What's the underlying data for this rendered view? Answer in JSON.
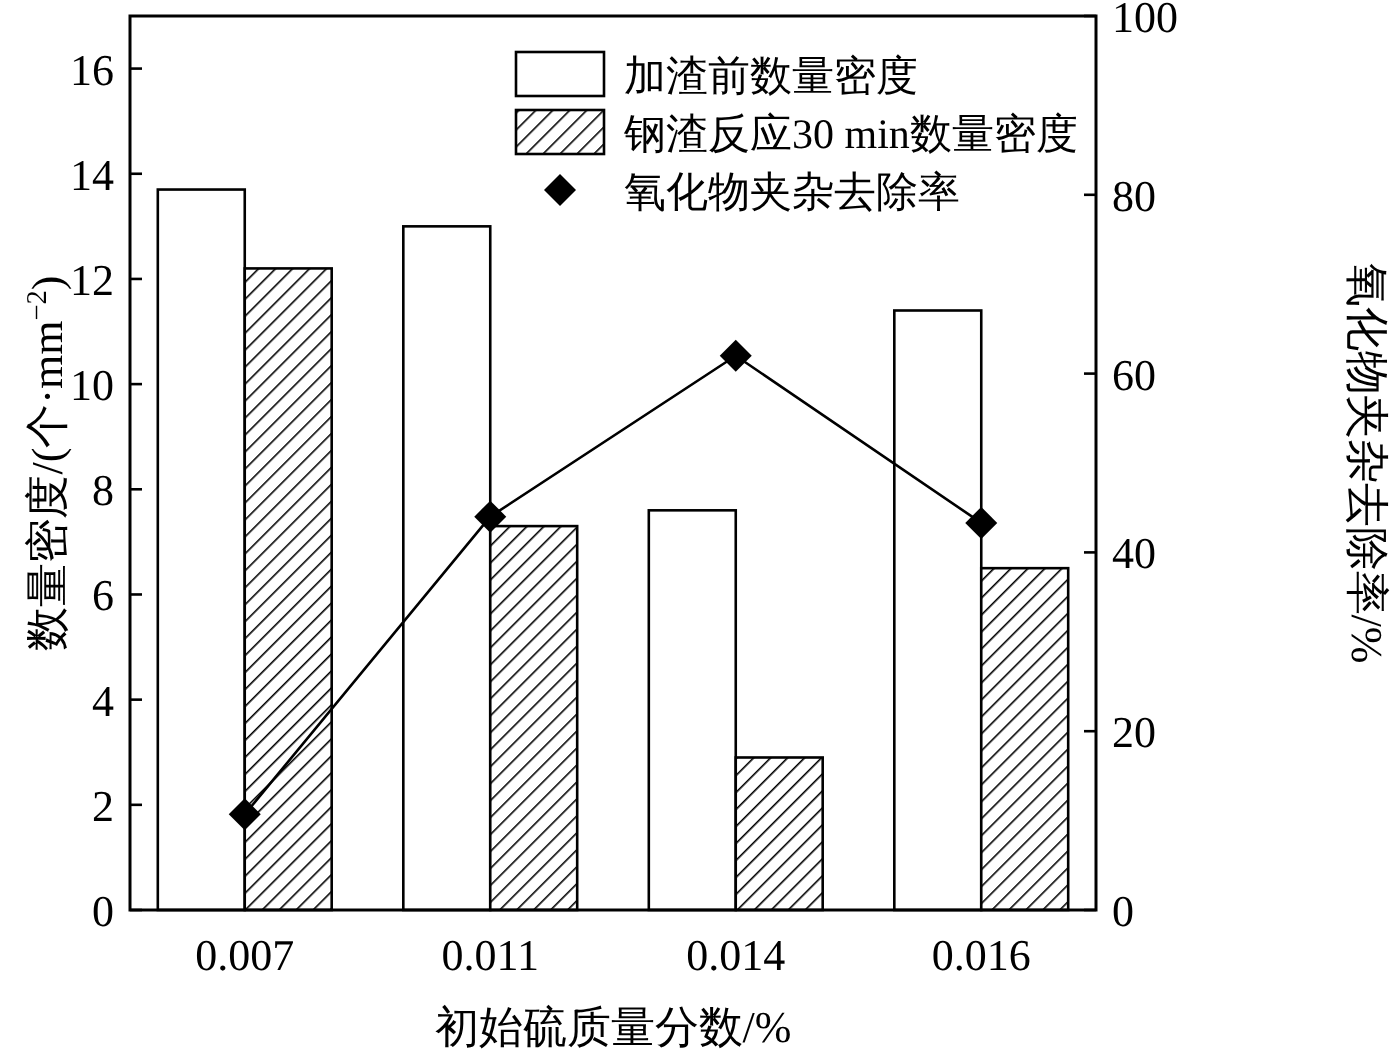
{
  "chart_data": {
    "type": "bar",
    "xlabel": "初始硫质量分数/%",
    "ylabel": "数量密度/(个·mm$^{−2}$)",
    "y2label": "氧化物夹杂去除率/%",
    "categories": [
      "0.007",
      "0.011",
      "0.014",
      "0.016"
    ],
    "series": [
      {
        "name": "加渣前数量密度",
        "color": "#ffffff",
        "values": [
          13.7,
          13.0,
          7.6,
          11.4
        ]
      },
      {
        "name": "钢渣反应30 min数量密度",
        "color": "#000000",
        "values": [
          12.2,
          7.3,
          2.9,
          6.5
        ]
      },
      {
        "name": "氧化物夹杂去除率",
        "type": "line",
        "axis": "y2",
        "color": "#000000",
        "marker": "diamond",
        "values": [
          10.7,
          44,
          62,
          43.3
        ]
      }
    ],
    "ylim": [
      0,
      17
    ],
    "yticks": [
      0,
      2,
      4,
      6,
      8,
      10,
      12,
      14,
      16
    ],
    "y2lim": [
      0,
      100
    ],
    "y2ticks": [
      0,
      20,
      40,
      60,
      80,
      100
    ],
    "grid": false,
    "legend": "top right"
  }
}
